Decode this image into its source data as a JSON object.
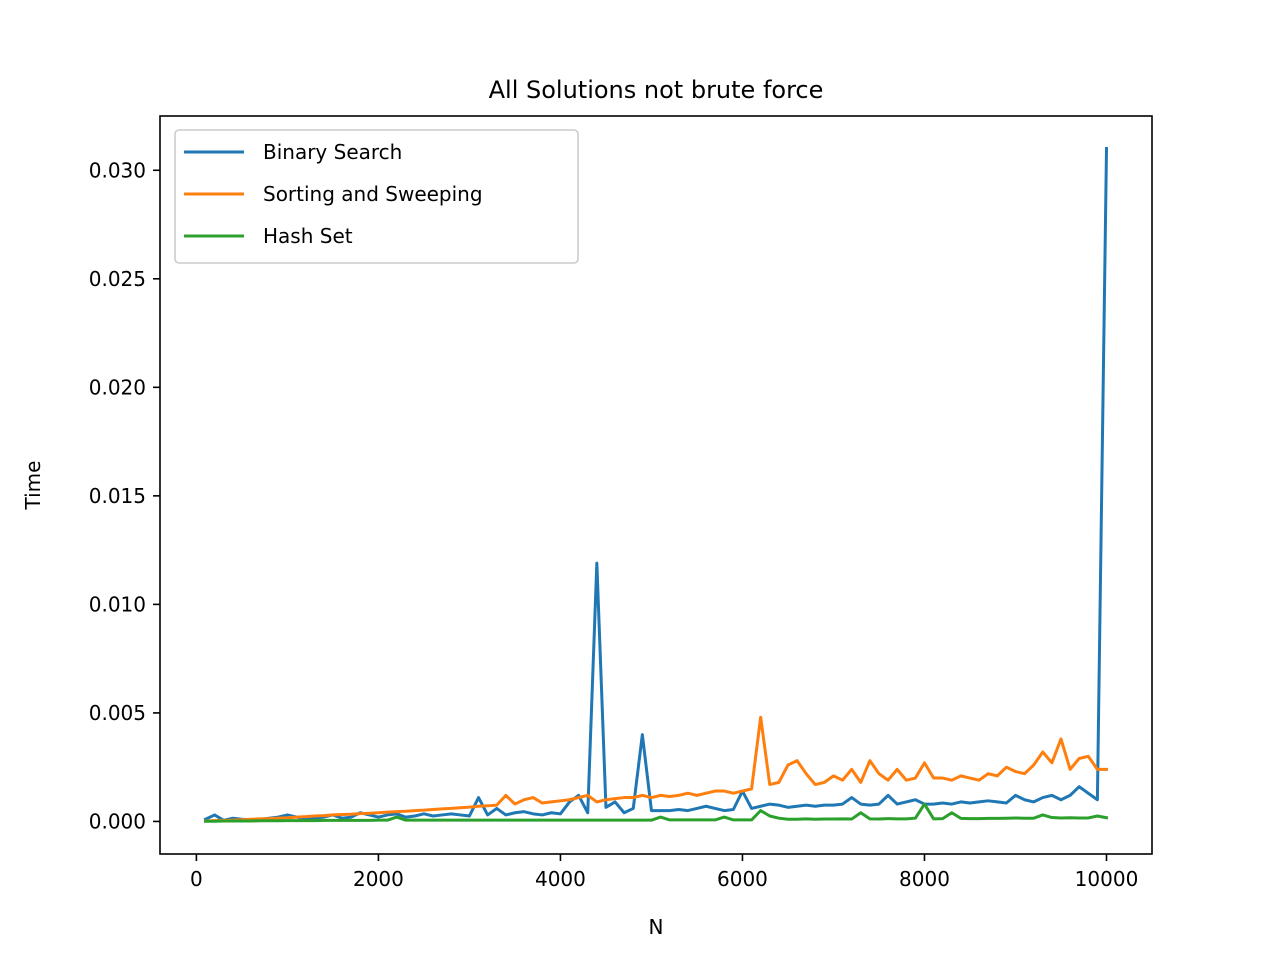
{
  "chart_data": {
    "type": "line",
    "title": "All Solutions not brute force",
    "xlabel": "N",
    "ylabel": "Time",
    "xlim": [
      -400,
      10500
    ],
    "ylim": [
      -0.0015,
      0.0325
    ],
    "xticks": [
      0,
      2000,
      4000,
      6000,
      8000,
      10000
    ],
    "xtick_labels": [
      "0",
      "2000",
      "4000",
      "6000",
      "8000",
      "10000"
    ],
    "yticks": [
      0.0,
      0.005,
      0.01,
      0.015,
      0.02,
      0.025,
      0.03
    ],
    "ytick_labels": [
      "0.000",
      "0.005",
      "0.010",
      "0.015",
      "0.020",
      "0.025",
      "0.030"
    ],
    "grid": false,
    "legend_position": "upper-left",
    "x": [
      100,
      200,
      300,
      400,
      500,
      600,
      700,
      800,
      900,
      1000,
      1100,
      1200,
      1300,
      1400,
      1500,
      1600,
      1700,
      1800,
      1900,
      2000,
      2100,
      2200,
      2300,
      2400,
      2500,
      2600,
      2700,
      2800,
      2900,
      3000,
      3100,
      3200,
      3300,
      3400,
      3500,
      3600,
      3700,
      3800,
      3900,
      4000,
      4100,
      4200,
      4300,
      4400,
      4500,
      4600,
      4700,
      4800,
      4900,
      5000,
      5100,
      5200,
      5300,
      5400,
      5500,
      5600,
      5700,
      5800,
      5900,
      6000,
      6100,
      6200,
      6300,
      6400,
      6500,
      6600,
      6700,
      6800,
      6900,
      7000,
      7100,
      7200,
      7300,
      7400,
      7500,
      7600,
      7700,
      7800,
      7900,
      8000,
      8100,
      8200,
      8300,
      8400,
      8500,
      8600,
      8700,
      8800,
      8900,
      9000,
      9100,
      9200,
      9300,
      9400,
      9500,
      9600,
      9700,
      9800,
      9900,
      10000
    ],
    "series": [
      {
        "name": "Binary Search",
        "color": "#1f77b4",
        "values": [
          0.0001,
          0.0003,
          5e-05,
          0.00015,
          0.0001,
          8e-05,
          0.0001,
          0.00015,
          0.0002,
          0.0003,
          0.0002,
          0.0001,
          0.00015,
          0.0002,
          0.0003,
          0.00015,
          0.0002,
          0.0004,
          0.0003,
          0.0002,
          0.0003,
          0.00035,
          0.0002,
          0.00025,
          0.00035,
          0.00025,
          0.0003,
          0.00035,
          0.0003,
          0.00025,
          0.0011,
          0.0003,
          0.0006,
          0.0003,
          0.0004,
          0.00045,
          0.00035,
          0.0003,
          0.0004,
          0.00035,
          0.0009,
          0.0012,
          0.0004,
          0.0119,
          0.00065,
          0.0009,
          0.0004,
          0.0006,
          0.004,
          0.0005,
          0.0005,
          0.0005,
          0.00055,
          0.0005,
          0.0006,
          0.0007,
          0.0006,
          0.0005,
          0.00055,
          0.0014,
          0.0006,
          0.0007,
          0.0008,
          0.00075,
          0.00065,
          0.0007,
          0.00075,
          0.0007,
          0.00075,
          0.00075,
          0.0008,
          0.0011,
          0.0008,
          0.00075,
          0.0008,
          0.0012,
          0.0008,
          0.0009,
          0.001,
          0.0008,
          0.0008,
          0.00085,
          0.0008,
          0.0009,
          0.00085,
          0.0009,
          0.00095,
          0.0009,
          0.00085,
          0.0012,
          0.001,
          0.0009,
          0.0011,
          0.0012,
          0.001,
          0.0012,
          0.0016,
          0.0013,
          0.001,
          0.031
        ]
      },
      {
        "name": "Sorting and Sweeping",
        "color": "#ff7f0e",
        "values": [
          2e-05,
          4e-05,
          5e-05,
          6e-05,
          8e-05,
          0.0001,
          0.00012,
          0.00013,
          0.00015,
          0.00017,
          0.0002,
          0.00022,
          0.00025,
          0.00027,
          0.0003,
          0.00032,
          0.00033,
          0.00036,
          0.00038,
          0.0004,
          0.00043,
          0.00045,
          0.00047,
          0.0005,
          0.00052,
          0.00055,
          0.00058,
          0.0006,
          0.00063,
          0.00066,
          0.0007,
          0.00072,
          0.00075,
          0.0012,
          0.0008,
          0.001,
          0.0011,
          0.00085,
          0.0009,
          0.00095,
          0.001,
          0.0011,
          0.0012,
          0.0009,
          0.001,
          0.00105,
          0.0011,
          0.0011,
          0.0012,
          0.0011,
          0.0012,
          0.00115,
          0.0012,
          0.0013,
          0.0012,
          0.0013,
          0.0014,
          0.0014,
          0.0013,
          0.0014,
          0.0015,
          0.0048,
          0.0017,
          0.0018,
          0.0026,
          0.0028,
          0.0022,
          0.0017,
          0.0018,
          0.0021,
          0.0019,
          0.0024,
          0.0018,
          0.0028,
          0.0022,
          0.0019,
          0.0024,
          0.0019,
          0.002,
          0.0027,
          0.002,
          0.002,
          0.0019,
          0.0021,
          0.002,
          0.0019,
          0.0022,
          0.0021,
          0.0025,
          0.0023,
          0.0022,
          0.0026,
          0.0032,
          0.0027,
          0.0038,
          0.0024,
          0.0029,
          0.003,
          0.0024,
          0.0024
        ]
      },
      {
        "name": "Hash Set",
        "color": "#2ca02c",
        "values": [
          1e-05,
          1e-05,
          2e-05,
          2e-05,
          2e-05,
          2e-05,
          3e-05,
          3e-05,
          3e-05,
          4e-05,
          4e-05,
          4e-05,
          4e-05,
          5e-05,
          5e-05,
          5e-05,
          5e-05,
          5e-05,
          5e-05,
          6e-05,
          6e-05,
          0.0002,
          6e-05,
          6e-05,
          6e-05,
          6e-05,
          6e-05,
          6e-05,
          6e-05,
          6e-05,
          6e-05,
          6e-05,
          6e-05,
          6e-05,
          6e-05,
          6e-05,
          6e-05,
          6e-05,
          6e-05,
          6e-05,
          6e-05,
          6e-05,
          6e-05,
          6e-05,
          6e-05,
          6e-05,
          6e-05,
          6e-05,
          6e-05,
          6e-05,
          0.0002,
          7e-05,
          7e-05,
          7e-05,
          7e-05,
          7e-05,
          7e-05,
          0.0002,
          7e-05,
          7e-05,
          7e-05,
          0.0005,
          0.00025,
          0.00015,
          0.0001,
          0.0001,
          0.00012,
          0.0001,
          0.00011,
          0.00011,
          0.00012,
          0.00011,
          0.0004,
          0.00012,
          0.00011,
          0.00013,
          0.00012,
          0.00012,
          0.00015,
          0.0008,
          0.00012,
          0.00013,
          0.0004,
          0.00014,
          0.00013,
          0.00013,
          0.00014,
          0.00014,
          0.00015,
          0.00016,
          0.00015,
          0.00015,
          0.0003,
          0.00018,
          0.00016,
          0.00017,
          0.00016,
          0.00016,
          0.00025,
          0.00017
        ]
      }
    ]
  }
}
